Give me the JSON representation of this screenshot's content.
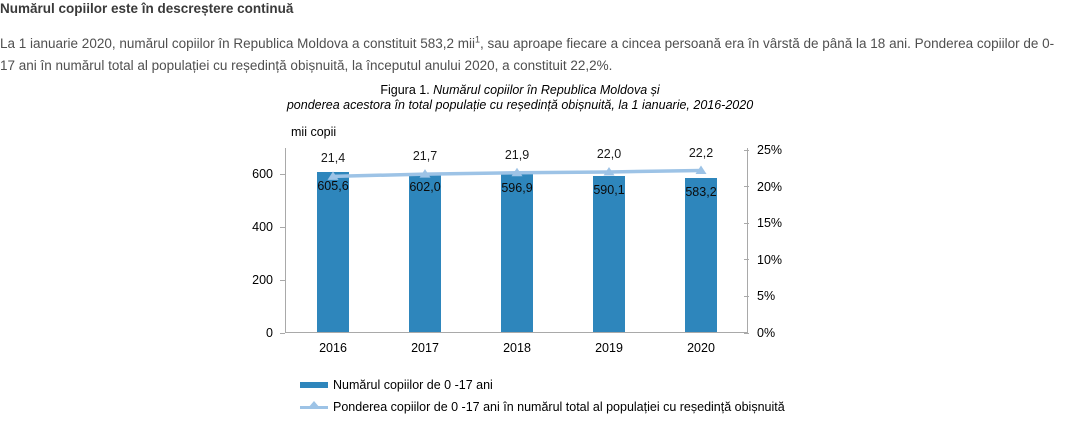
{
  "page": {
    "heading": "Numărul copiilor este în descreștere continuă",
    "paragraph": {
      "before_sup": "La 1 ianuarie 2020, numărul copiilor în Republica Moldova a constituit 583,2 mii",
      "sup": "1",
      "after_sup": ", sau aproape fiecare a cincea persoană era în vârstă de până la 18 ani. Ponderea copiilor de 0-17 ani în numărul total al populației cu reședință obișnuită, la începutul anului 2020, a constituit 22,2%."
    }
  },
  "figure": {
    "caption_prefix": "Figura 1. ",
    "caption_line1_italic": "Numărul copiilor în Republica Moldova și",
    "caption_line2_italic": "ponderea acestora în total populație cu reședință obișnuită, la 1 ianuarie, 2016-2020",
    "unit_label": "mii copii"
  },
  "chart_data": {
    "type": "bar",
    "subtype": "bar-line-combo",
    "title": "Figura 1. Numărul copiilor în Republica Moldova și ponderea acestora în total populație cu reședință obișnuită, la 1 ianuarie, 2016-2020",
    "categories": [
      "2016",
      "2017",
      "2018",
      "2019",
      "2020"
    ],
    "series": [
      {
        "name": "Numărul copiilor de 0 -17 ani",
        "type": "bar",
        "axis": "left",
        "values": [
          605.6,
          602.0,
          596.9,
          590.1,
          583.2
        ],
        "labels": [
          "605,6",
          "602,0",
          "596,9",
          "590,1",
          "583,2"
        ],
        "color": "#2e86bc"
      },
      {
        "name": "Ponderea copiilor de 0 -17 ani în  numărul total al populației cu reședință obișnuită",
        "type": "line",
        "axis": "right",
        "values": [
          21.4,
          21.7,
          21.9,
          22.0,
          22.2
        ],
        "labels": [
          "21,4",
          "21,7",
          "21,9",
          "22,0",
          "22,2"
        ],
        "color": "#9dc3e6",
        "marker": "triangle-up"
      }
    ],
    "left_axis": {
      "title": "mii copii",
      "tick_labels": [
        "0",
        "200",
        "400",
        "600"
      ],
      "tick_values": [
        0,
        200,
        400,
        600
      ],
      "max": 700
    },
    "right_axis": {
      "tick_labels": [
        "0%",
        "5%",
        "10%",
        "15%",
        "20%",
        "25%"
      ],
      "tick_values": [
        0,
        5,
        10,
        15,
        20,
        25
      ],
      "max": 25
    },
    "grid": false,
    "legend_position": "bottom-left"
  }
}
